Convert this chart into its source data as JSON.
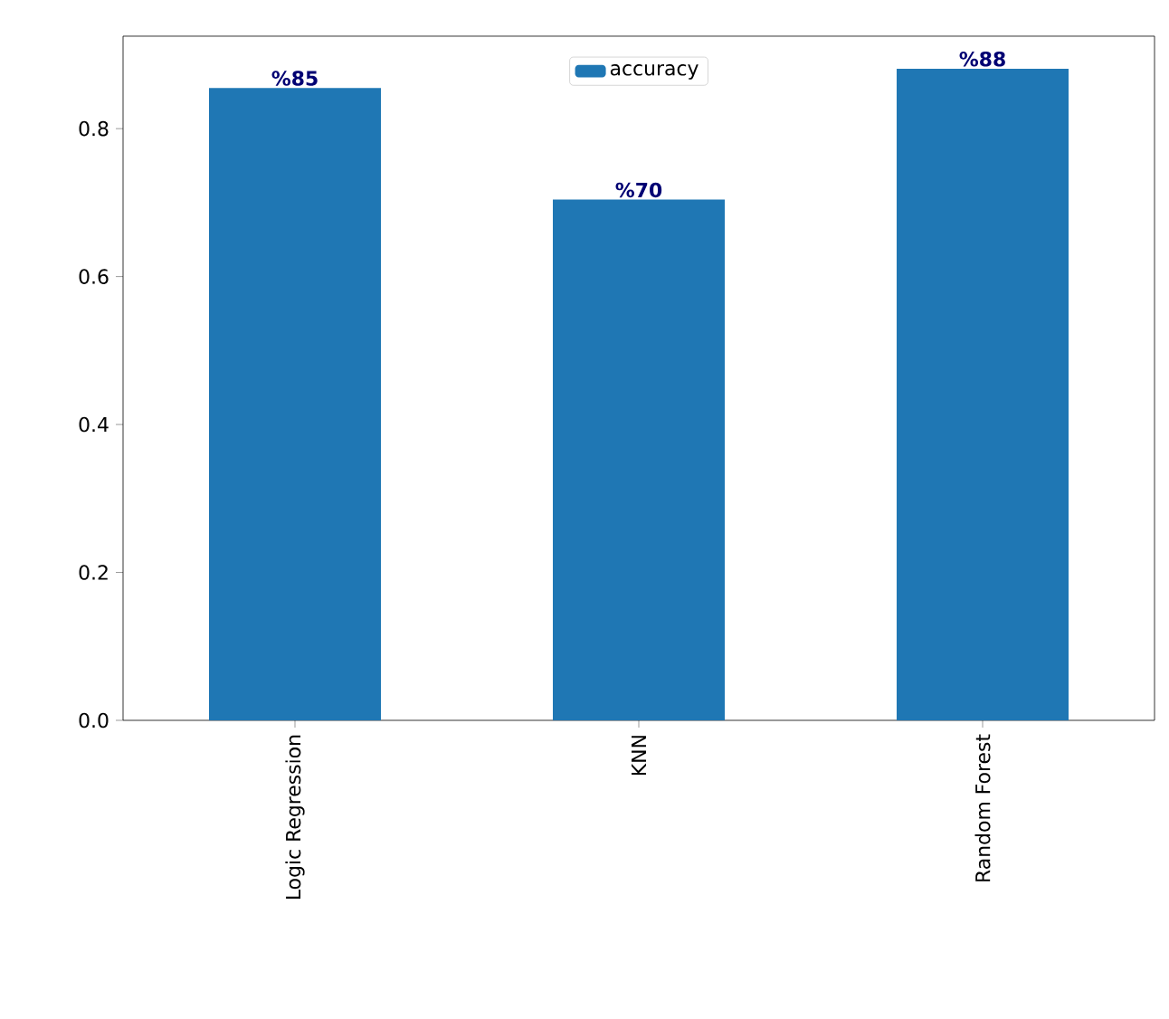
{
  "chart_data": {
    "type": "bar",
    "categories": [
      "Logic Regression",
      "KNN",
      "Random Forest"
    ],
    "series": [
      {
        "name": "accuracy",
        "color": "#1f77b4",
        "values": [
          0.855,
          0.704,
          0.881
        ],
        "value_labels": [
          "%85",
          "%70",
          "%88"
        ]
      }
    ],
    "ylim": [
      0,
      0.925
    ],
    "yticks": [
      {
        "value": 0.0,
        "label": "0.0"
      },
      {
        "value": 0.2,
        "label": "0.2"
      },
      {
        "value": 0.4,
        "label": "0.4"
      },
      {
        "value": 0.6,
        "label": "0.6"
      },
      {
        "value": 0.8,
        "label": "0.8"
      }
    ],
    "legend": "top",
    "grid": false
  }
}
